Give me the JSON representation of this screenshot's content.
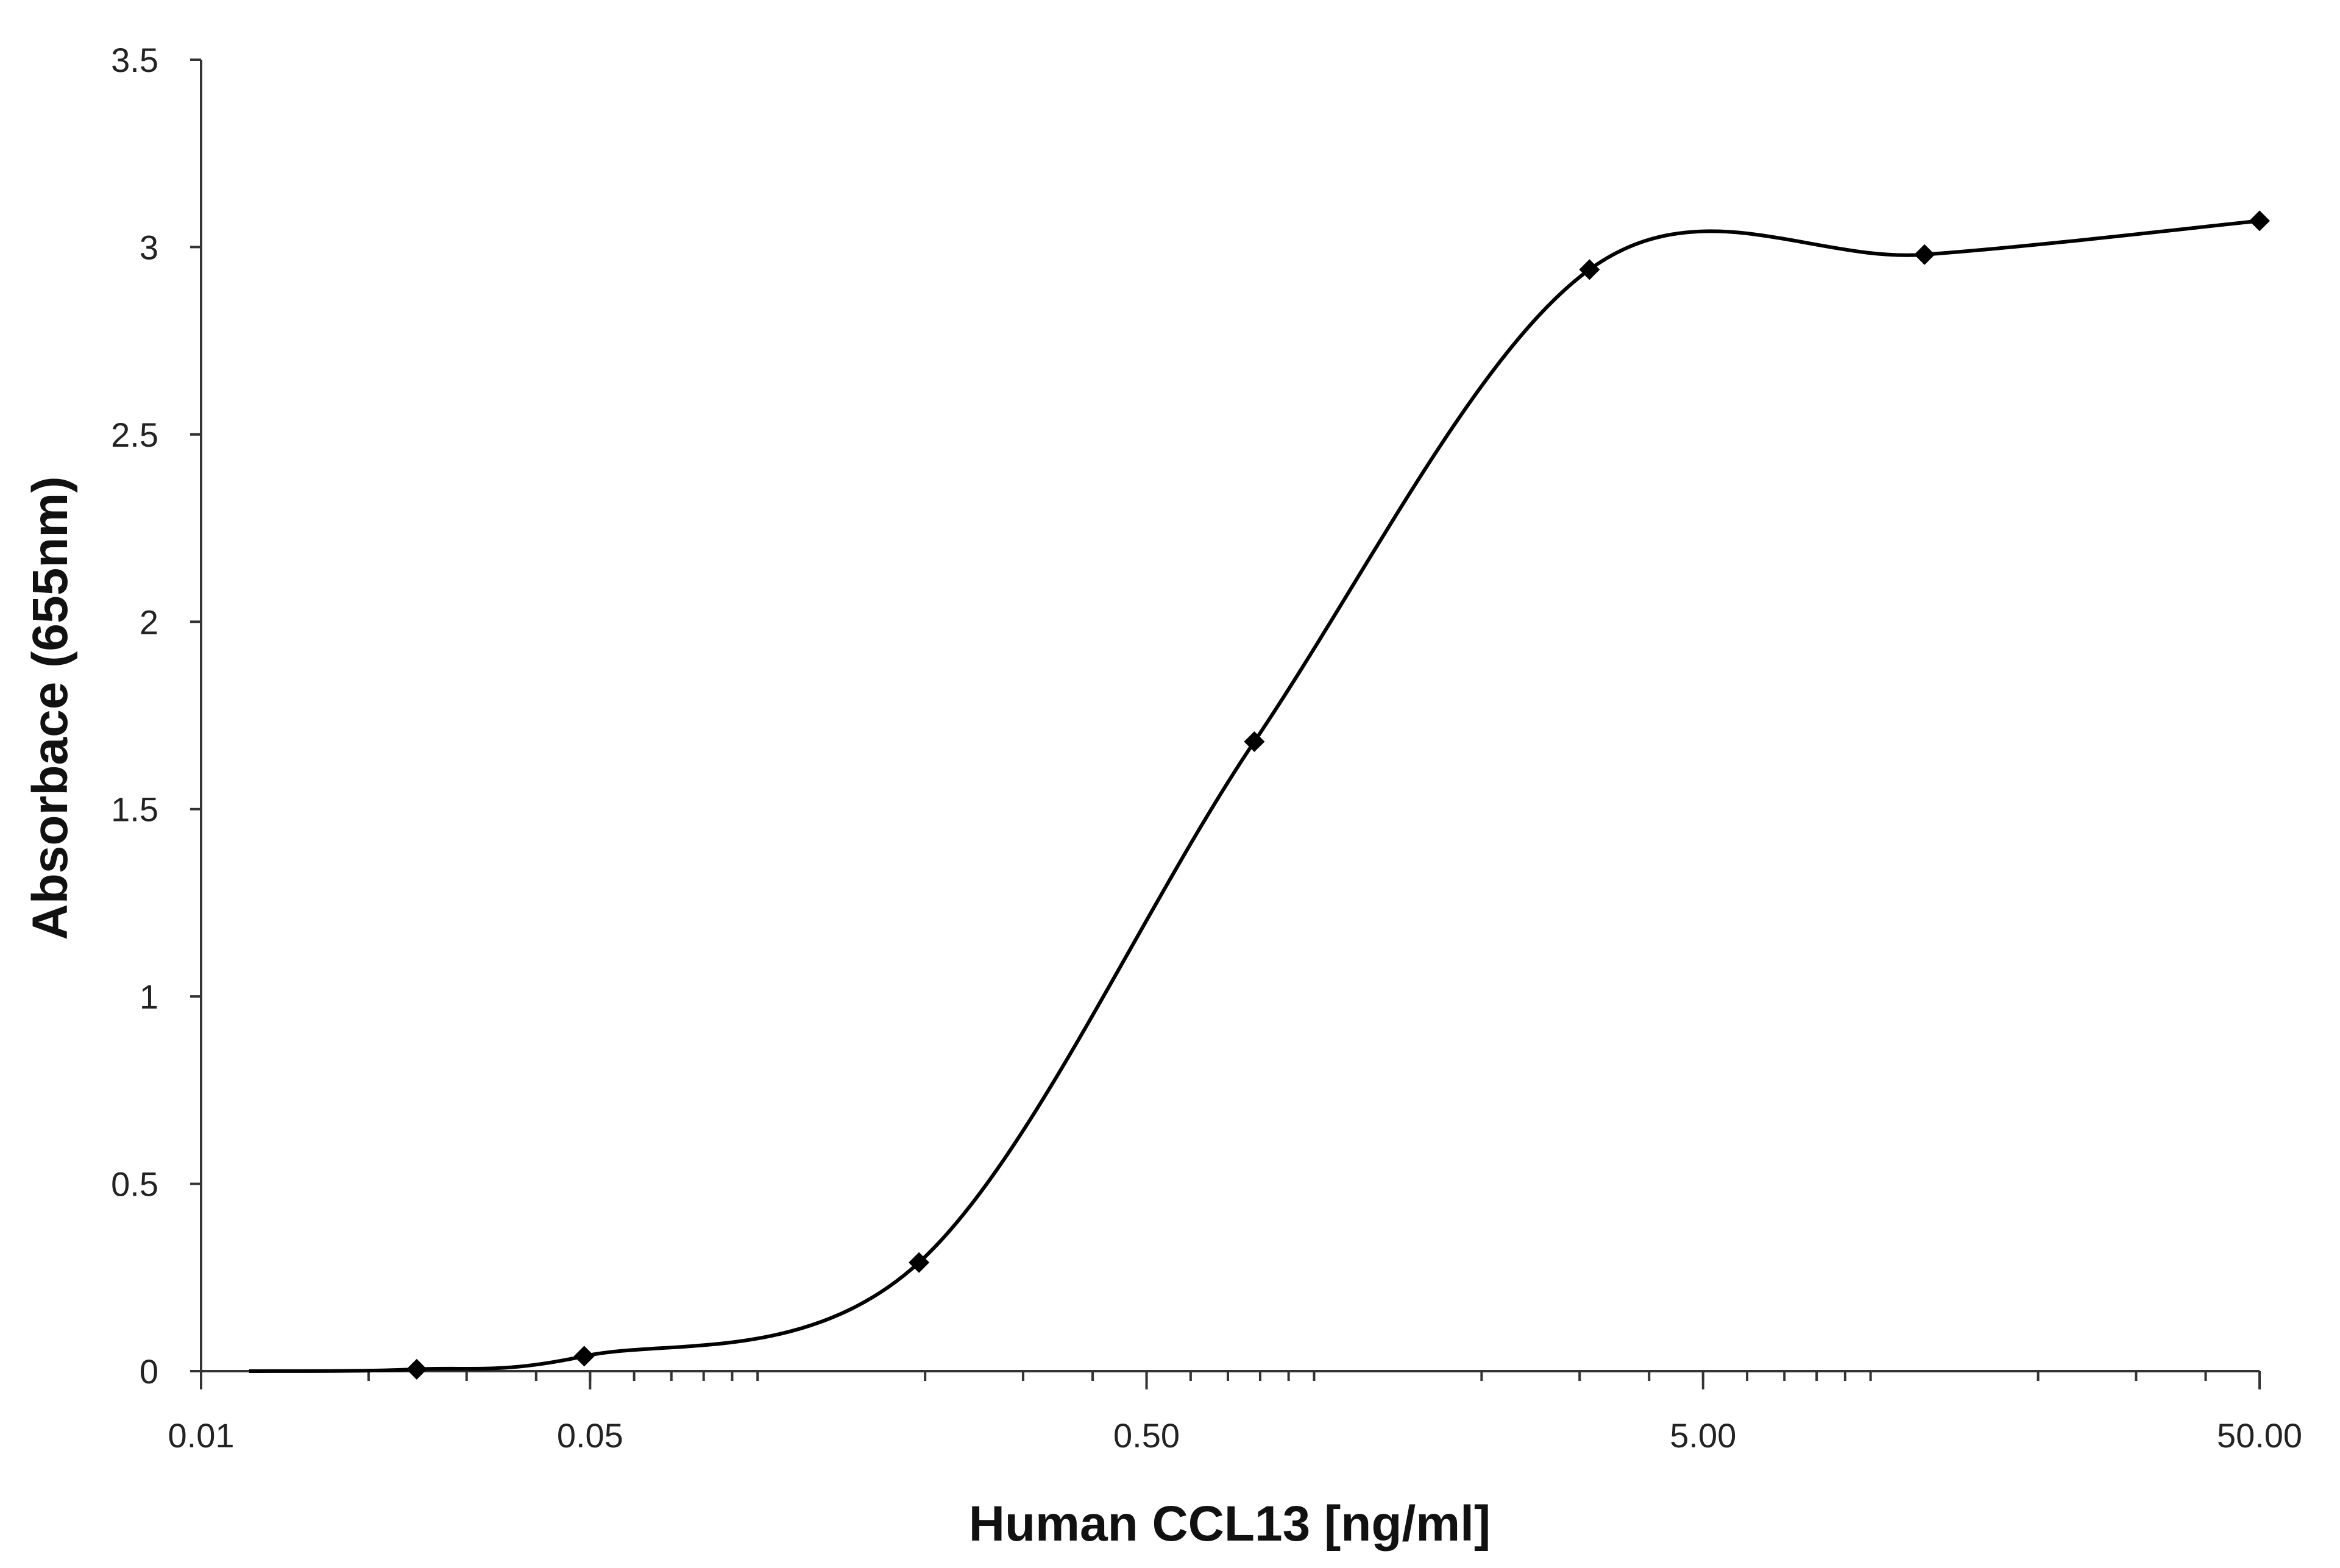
{
  "chart_data": {
    "type": "line",
    "title": "",
    "xlabel": "Human CCL13 [ng/ml]",
    "ylabel": "Absorbace (655nm)",
    "x_scale": "log",
    "xlim": [
      0.01,
      50
    ],
    "ylim": [
      0,
      3.5
    ],
    "x_tick_labels": [
      {
        "value": 0.01,
        "label": "0.01"
      },
      {
        "value": 0.05,
        "label": "0.05"
      },
      {
        "value": 0.5,
        "label": "0.50"
      },
      {
        "value": 5,
        "label": "5.00"
      },
      {
        "value": 50,
        "label": "50.00"
      }
    ],
    "y_tick_labels": [
      {
        "value": 0,
        "label": "0"
      },
      {
        "value": 0.5,
        "label": "0.5"
      },
      {
        "value": 1,
        "label": "1"
      },
      {
        "value": 1.5,
        "label": "1.5"
      },
      {
        "value": 2,
        "label": "2"
      },
      {
        "value": 2.5,
        "label": "2.5"
      },
      {
        "value": 3,
        "label": "3"
      },
      {
        "value": 3.5,
        "label": "3.5"
      }
    ],
    "grid": false,
    "smooth": true,
    "series": [
      {
        "marker": "diamond",
        "color": "#000000",
        "points": [
          {
            "x": 0.0122,
            "y": 0.0
          },
          {
            "x": 0.0244,
            "y": 0.005
          },
          {
            "x": 0.0488,
            "y": 0.04
          },
          {
            "x": 0.195,
            "y": 0.29
          },
          {
            "x": 0.781,
            "y": 1.68
          },
          {
            "x": 3.125,
            "y": 2.94
          },
          {
            "x": 12.5,
            "y": 2.98
          },
          {
            "x": 50,
            "y": 3.07
          }
        ]
      }
    ]
  }
}
